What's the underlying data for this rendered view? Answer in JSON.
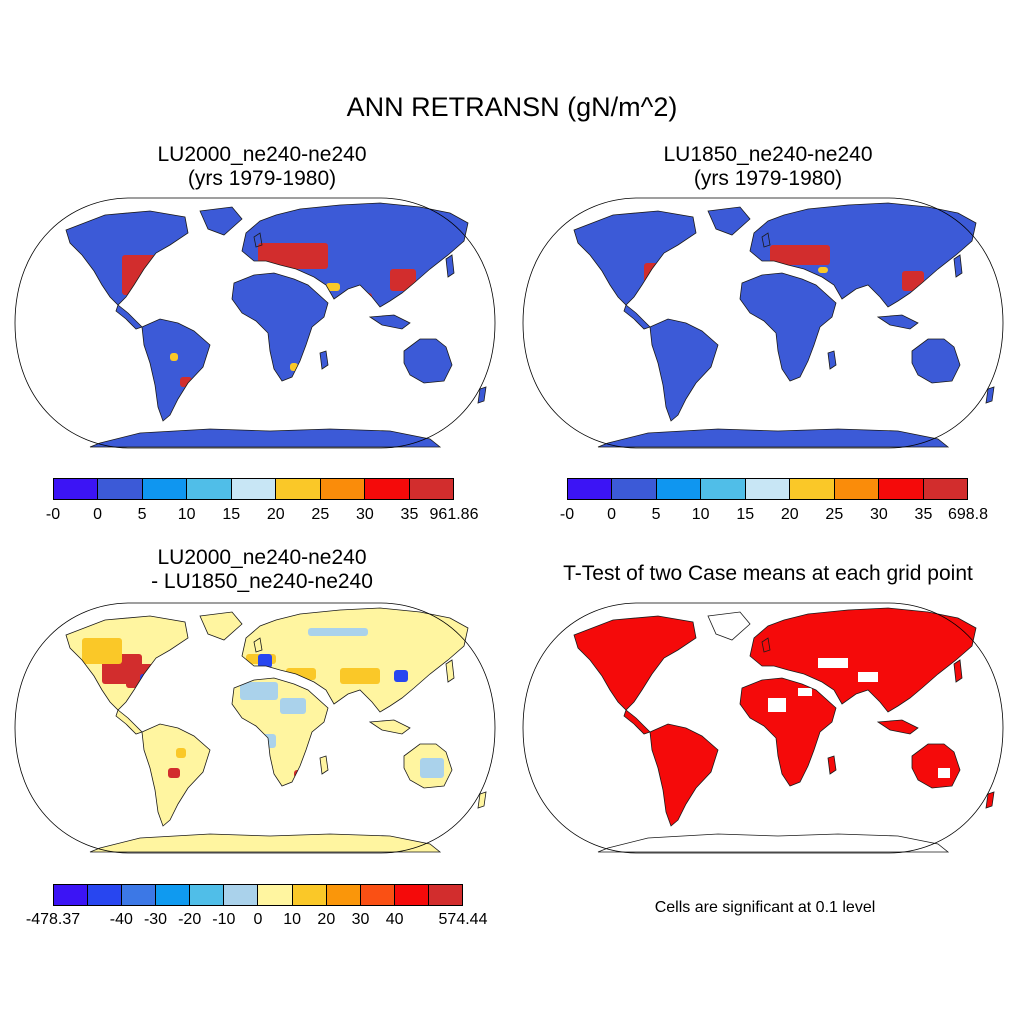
{
  "title": "ANN RETRANSN (gN/m^2)",
  "panels": [
    {
      "id": "p1",
      "title_line1": "LU2000_ne240-ne240",
      "title_line2": "(yrs 1979-1980)",
      "colorbar": {
        "colors": [
          "#3c14f5",
          "#3c5ad7",
          "#0f96f0",
          "#50bee8",
          "#c8e6f5",
          "#fac828",
          "#fa8c0a",
          "#f50a0a",
          "#d22d2d"
        ],
        "labels": [
          "-0",
          "0",
          "5",
          "10",
          "15",
          "20",
          "25",
          "30",
          "35",
          "961.86"
        ]
      }
    },
    {
      "id": "p2",
      "title_line1": "LU1850_ne240-ne240",
      "title_line2": "(yrs 1979-1980)",
      "colorbar": {
        "colors": [
          "#3c14f5",
          "#3c5ad7",
          "#0f96f0",
          "#50bee8",
          "#c8e6f5",
          "#fac828",
          "#fa8c0a",
          "#f50a0a",
          "#d22d2d"
        ],
        "labels": [
          "-0",
          "0",
          "5",
          "10",
          "15",
          "20",
          "25",
          "30",
          "35",
          "698.8"
        ]
      }
    },
    {
      "id": "p3",
      "title_line1": "LU2000_ne240-ne240",
      "title_line2": "- LU1850_ne240-ne240",
      "colorbar": {
        "colors": [
          "#3c14f5",
          "#2846f0",
          "#3c78e6",
          "#0f9af0",
          "#50bee8",
          "#aad2eb",
          "#fff5a0",
          "#fac828",
          "#fa960a",
          "#fa5014",
          "#f50a0a",
          "#d22d2d"
        ],
        "labels": [
          "-478.37",
          "-40",
          "-30",
          "-20",
          "-10",
          "0",
          "10",
          "20",
          "30",
          "40",
          "574.44"
        ]
      }
    },
    {
      "id": "p4",
      "title_line1": "T-Test of two Case means at each grid point",
      "title_line2": ""
    }
  ],
  "note": "Cells are significant at 0.1 level",
  "map_colors": {
    "land_base_p1": "#3c5ad7",
    "land_base_p2": "#3c5ad7",
    "land_base_p3": "#fff5a0",
    "land_base_p4": "#f50a0a",
    "hot": "#d22d2d",
    "warm": "#fac828",
    "cool": "#aad2eb",
    "coast": "#1a1a1a"
  }
}
